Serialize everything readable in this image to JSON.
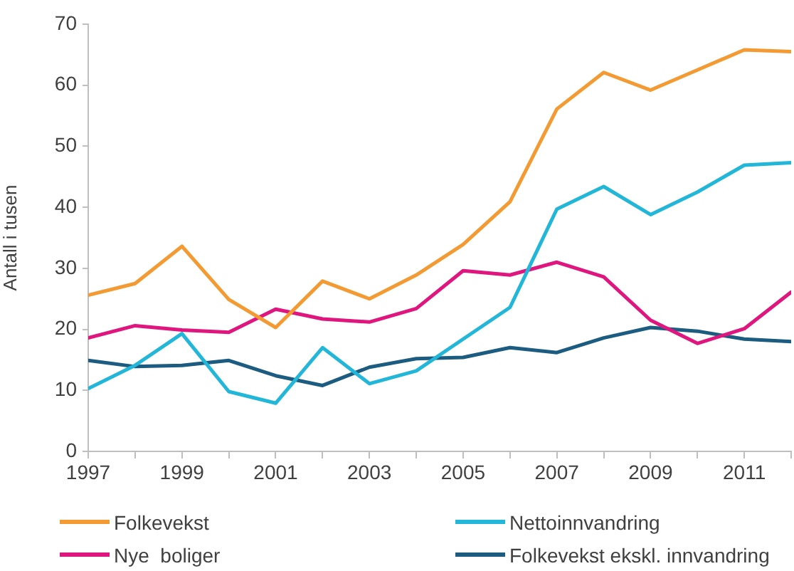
{
  "chart_data": {
    "type": "line",
    "ylabel": "Antall i tusen",
    "legend": "bottom",
    "x": [
      1997,
      1998,
      1999,
      2000,
      2001,
      2002,
      2003,
      2004,
      2005,
      2006,
      2007,
      2008,
      2009,
      2010,
      2011,
      2012
    ],
    "xlim": [
      1997,
      2012
    ],
    "xticks": [
      1997,
      {
        "value": 1998,
        "label": null
      },
      1999,
      {
        "value": 2000,
        "label": null
      },
      2001,
      {
        "value": 2002,
        "label": null
      },
      2003,
      {
        "value": 2004,
        "label": null
      },
      2005,
      {
        "value": 2006,
        "label": null
      },
      2007,
      {
        "value": 2008,
        "label": null
      },
      2009,
      {
        "value": 2010,
        "label": null
      },
      2011,
      {
        "value": 2012,
        "label": null
      }
    ],
    "ylim": [
      0,
      70
    ],
    "yticks": [
      0,
      10,
      20,
      30,
      40,
      50,
      60,
      70
    ],
    "series": [
      {
        "name": "Folkevekst",
        "color": "#f49a32",
        "values": [
          25.6,
          27.5,
          33.6,
          24.9,
          20.3,
          27.9,
          25.0,
          28.9,
          33.9,
          40.9,
          56.1,
          62.1,
          59.2,
          62.5,
          65.8,
          65.5
        ]
      },
      {
        "name": "Nettoinnvandring",
        "color": "#22b6d8",
        "values": [
          10.3,
          14.1,
          19.3,
          9.8,
          7.9,
          17.0,
          11.1,
          13.2,
          18.4,
          23.6,
          39.7,
          43.4,
          38.8,
          42.5,
          46.9,
          47.3
        ]
      },
      {
        "name": "Nye  boliger",
        "color": "#e0167f",
        "values": [
          18.6,
          20.6,
          19.9,
          19.5,
          23.3,
          21.7,
          21.2,
          23.4,
          29.6,
          28.9,
          31.0,
          28.6,
          21.5,
          17.7,
          20.1,
          26.1
        ]
      },
      {
        "name": "Folkevekst ekskl. innvandring",
        "color": "#1b5c80",
        "values": [
          14.9,
          13.9,
          14.1,
          14.9,
          12.4,
          10.8,
          13.8,
          15.2,
          15.4,
          17.0,
          16.2,
          18.6,
          20.3,
          19.7,
          18.4,
          18.0
        ]
      }
    ]
  }
}
